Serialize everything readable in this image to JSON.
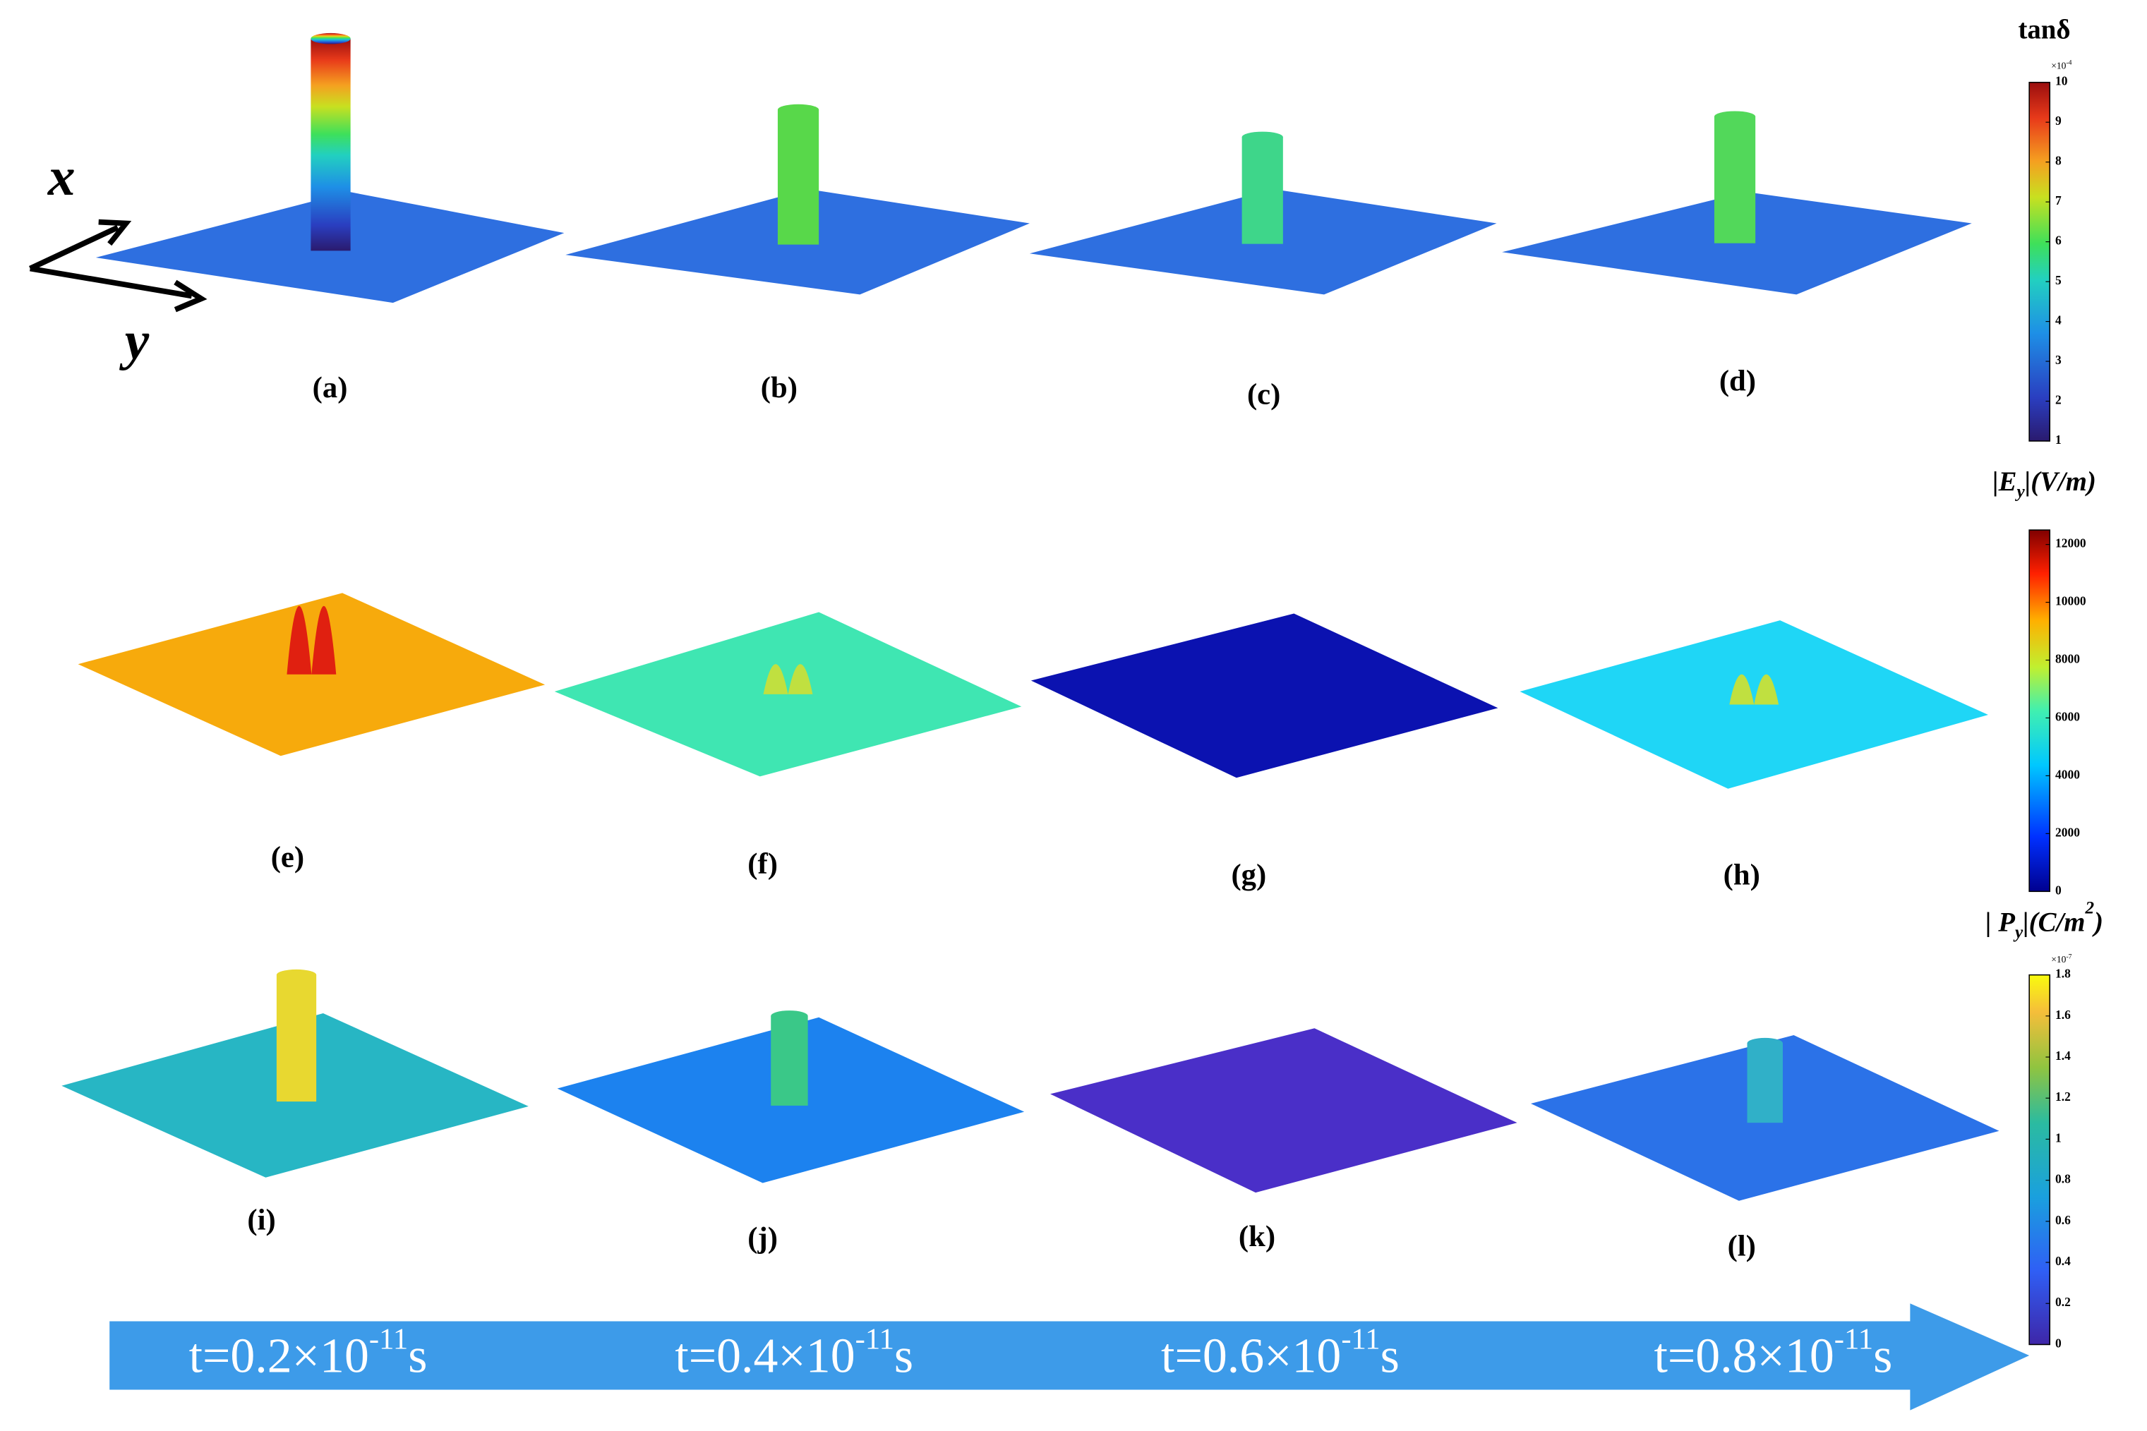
{
  "axes": {
    "x": "x",
    "y": "y"
  },
  "panels": [
    {
      "label": "(a)",
      "color": "#2e6fe0"
    },
    {
      "label": "(b)",
      "color": "#2e6fe0"
    },
    {
      "label": "(c)",
      "color": "#2e6fe0"
    },
    {
      "label": "(d)",
      "color": "#2e6fe0"
    },
    {
      "label": "(e)",
      "color": "#f7aa0c"
    },
    {
      "label": "(f)",
      "color": "#3fe6b2"
    },
    {
      "label": "(g)",
      "color": "#0b12b0"
    },
    {
      "label": "(h)",
      "color": "#1fd6f6"
    },
    {
      "label": "(i)",
      "color": "#27b6c4"
    },
    {
      "label": "(j)",
      "color": "#1c82ef"
    },
    {
      "label": "(k)",
      "color": "#4a2fc8"
    },
    {
      "label": "(l)",
      "color": "#2b72e8"
    }
  ],
  "colorbars": [
    {
      "title": [
        "tanδ"
      ],
      "exponent": [
        "×10",
        "-4"
      ],
      "lim": [
        1,
        10
      ],
      "ticks": [
        1,
        2,
        3,
        4,
        5,
        6,
        7,
        8,
        9,
        10
      ]
    },
    {
      "title": [
        "|E",
        "y",
        "|(V/m)"
      ],
      "lim": [
        0,
        12500
      ],
      "ticks": [
        0,
        2000,
        4000,
        6000,
        8000,
        10000,
        12000
      ]
    },
    {
      "title": [
        "| P",
        "y",
        "|(C/m",
        "2",
        ")"
      ],
      "exponent": [
        "×10",
        "-7"
      ],
      "lim": [
        0,
        1.8
      ],
      "ticks": [
        0,
        0.2,
        0.4,
        0.6,
        0.8,
        1,
        1.2,
        1.4,
        1.6,
        1.8
      ]
    }
  ],
  "timeline": [
    [
      "t=0.2×10",
      "-11",
      "s"
    ],
    [
      "t=0.4×10",
      "-11",
      "s"
    ],
    [
      "t=0.6×10",
      "-11",
      "s"
    ],
    [
      "t=0.8×10",
      "-11",
      "s"
    ]
  ]
}
